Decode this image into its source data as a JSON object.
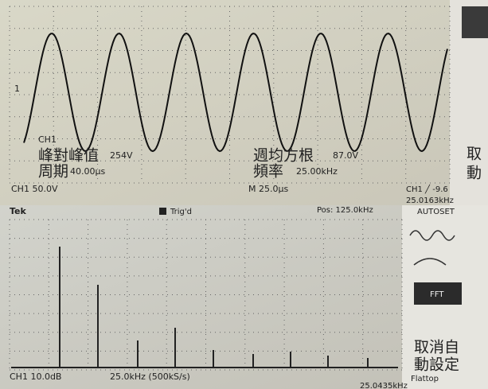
{
  "top_screen": {
    "marker": "1",
    "ch_label": "CH1",
    "pp_label": "峰對峰值",
    "pp_value": "254V",
    "rms_label": "週均方根",
    "rms_value": "87.0V",
    "period_label": "周期",
    "period_value": "40.00μs",
    "freq_label": "頻率",
    "freq_value": "25.00kHz",
    "menu_1": "取",
    "menu_2": "動",
    "scale": "CH1  50.0V",
    "time": "M 25.0μs",
    "trigger": "CH1 ╱ -9.6",
    "trigger_freq": "25.0163kHz"
  },
  "bottom_screen": {
    "brand": "Tek",
    "status": "Trig'd",
    "position": "Pos: 125.0kHz",
    "autoset": "AUTOSET",
    "fft": "FFT",
    "menu_1": "取消自",
    "menu_2": "動設定",
    "scale": "CH1  10.0dB",
    "span": "25.0kHz (500kS/s)",
    "window": "Flattop",
    "trigger_freq": "25.0435kHz"
  }
}
